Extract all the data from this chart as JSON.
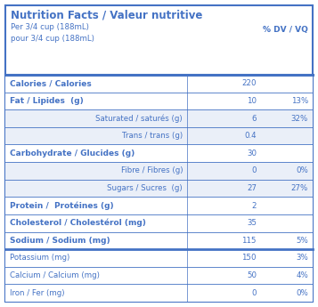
{
  "title": "Nutrition Facts / Valeur nutritive",
  "serving": "Per 3/4 cup (188mL)\npour 3/4 cup (188mL)",
  "dv_label": "% DV / VQ",
  "blue": "#4472C4",
  "bg_subrow": "#EAEFF8",
  "border_color": "#4472C4",
  "rows": [
    {
      "label": "Calories / Calories",
      "bold": true,
      "indent": false,
      "value": "220",
      "dv": "",
      "thick_below": false
    },
    {
      "label": "Fat / Lipides  (g)",
      "bold": true,
      "indent": false,
      "value": "10",
      "dv": "13%",
      "thick_below": false
    },
    {
      "label": "Saturated / saturés (g)",
      "bold": false,
      "indent": true,
      "value": "6",
      "dv": "32%",
      "thick_below": false
    },
    {
      "label": "Trans / trans (g)",
      "bold": false,
      "indent": true,
      "value": "0.4",
      "dv": "",
      "thick_below": false
    },
    {
      "label": "Carbohydrate / Glucides (g)",
      "bold": true,
      "indent": false,
      "value": "30",
      "dv": "",
      "thick_below": false
    },
    {
      "label": "Fibre / Fibres (g)",
      "bold": false,
      "indent": true,
      "value": "0",
      "dv": "0%",
      "thick_below": false
    },
    {
      "label": "Sugars / Sucres  (g)",
      "bold": false,
      "indent": true,
      "value": "27",
      "dv": "27%",
      "thick_below": false
    },
    {
      "label": "Protein /  Protéines (g)",
      "bold": true,
      "indent": false,
      "value": "2",
      "dv": "",
      "thick_below": false
    },
    {
      "label": "Cholesterol / Cholestérol (mg)",
      "bold": true,
      "indent": false,
      "value": "35",
      "dv": "",
      "thick_below": false
    },
    {
      "label": "Sodium / Sodium (mg)",
      "bold": true,
      "indent": false,
      "value": "115",
      "dv": "5%",
      "thick_below": true
    },
    {
      "label": "Potassium (mg)",
      "bold": false,
      "indent": false,
      "value": "150",
      "dv": "3%",
      "thick_below": false
    },
    {
      "label": "Calcium / Calcium (mg)",
      "bold": false,
      "indent": false,
      "value": "50",
      "dv": "4%",
      "thick_below": false
    },
    {
      "label": "Iron / Fer (mg)",
      "bold": false,
      "indent": false,
      "value": "0",
      "dv": "0%",
      "thick_below": false
    }
  ],
  "fig_width": 3.57,
  "fig_height": 3.45,
  "dpi": 100
}
